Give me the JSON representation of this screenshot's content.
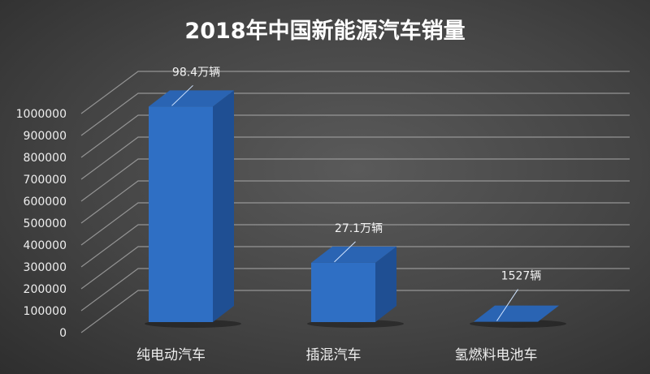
{
  "chart_data": {
    "type": "bar",
    "title": "2018年中国新能源汽车销量",
    "categories": [
      "纯电动汽车",
      "插混汽车",
      "氢燃料电池车"
    ],
    "values": [
      984000,
      271000,
      1527
    ],
    "data_labels": [
      "98.4万辆",
      "27.1万辆",
      "1527辆"
    ],
    "xlabel": "",
    "ylabel": "",
    "ylim": [
      0,
      1000000
    ],
    "yticks": [
      "0",
      "100000",
      "200000",
      "300000",
      "400000",
      "500000",
      "600000",
      "700000",
      "800000",
      "900000",
      "1000000"
    ],
    "grid": true,
    "legend": "none",
    "bar_color": "#2f6fc4",
    "style": "3d"
  }
}
